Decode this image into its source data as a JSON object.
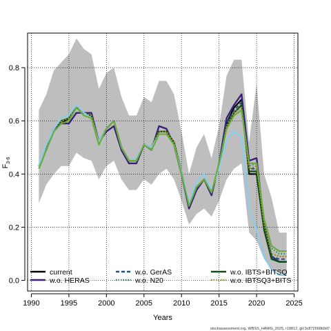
{
  "chart_data": {
    "type": "line",
    "xlabel": "Years",
    "ylabel": "F",
    "ylabel_sub": "3-6",
    "xlim": [
      1989.5,
      2025.5
    ],
    "ylim": [
      -0.04,
      0.93
    ],
    "xticks": [
      1990,
      1995,
      2000,
      2005,
      2010,
      2015,
      2020,
      2025
    ],
    "yticks": [
      0.0,
      0.2,
      0.4,
      0.6,
      0.8
    ],
    "xtick_labels": [
      "1990",
      "1995",
      "2000",
      "2005",
      "2010",
      "2015",
      "2020",
      "2025"
    ],
    "ytick_labels": [
      "0.0",
      "0.2",
      "0.4",
      "0.6",
      "0.8"
    ],
    "grid": true,
    "x": [
      1991,
      1992,
      1993,
      1994,
      1995,
      1996,
      1997,
      1998,
      1999,
      2000,
      2001,
      2002,
      2003,
      2004,
      2005,
      2006,
      2007,
      2008,
      2009,
      2010,
      2011,
      2012,
      2013,
      2014,
      2015,
      2016,
      2017,
      2018,
      2019,
      2020,
      2021,
      2022,
      2023,
      2024
    ],
    "band": {
      "upper": [
        0.64,
        0.7,
        0.79,
        0.82,
        0.85,
        0.91,
        0.87,
        0.85,
        0.72,
        0.78,
        0.8,
        0.69,
        0.62,
        0.62,
        0.69,
        0.67,
        0.75,
        0.75,
        0.7,
        0.56,
        0.4,
        0.5,
        0.55,
        0.46,
        0.58,
        0.77,
        0.83,
        0.83,
        0.52,
        0.74,
        0.4,
        0.31,
        0.18,
        0.18
      ],
      "lower": [
        0.29,
        0.36,
        0.4,
        0.43,
        0.43,
        0.48,
        0.46,
        0.45,
        0.38,
        0.43,
        0.45,
        0.38,
        0.34,
        0.34,
        0.38,
        0.36,
        0.4,
        0.42,
        0.38,
        0.3,
        0.21,
        0.25,
        0.27,
        0.24,
        0.3,
        0.38,
        0.42,
        0.44,
        0.18,
        0.15,
        0.08,
        0.04,
        0.03,
        0.02
      ],
      "color": "#bebebe"
    },
    "series": [
      {
        "name": "current",
        "color": "#000000",
        "dash": "",
        "width": 2.2,
        "values": [
          0.43,
          0.5,
          0.57,
          0.59,
          0.61,
          0.65,
          0.63,
          0.62,
          0.52,
          0.57,
          0.6,
          0.5,
          0.45,
          0.45,
          0.51,
          0.5,
          0.56,
          0.56,
          0.52,
          0.41,
          0.28,
          0.35,
          0.38,
          0.33,
          0.43,
          0.59,
          0.65,
          0.68,
          0.4,
          0.4,
          0.19,
          0.08,
          0.07,
          0.07
        ]
      },
      {
        "name": "w.o. HERAS",
        "color": "#3a1f7a",
        "dash": "",
        "width": 2.4,
        "values": [
          0.43,
          0.5,
          0.57,
          0.59,
          0.59,
          0.63,
          0.63,
          0.63,
          0.52,
          0.56,
          0.58,
          0.49,
          0.44,
          0.44,
          0.51,
          0.49,
          0.58,
          0.57,
          0.51,
          0.4,
          0.27,
          0.34,
          0.38,
          0.32,
          0.44,
          0.61,
          0.66,
          0.7,
          0.45,
          0.46,
          0.21,
          0.09,
          0.07,
          0.07
        ]
      },
      {
        "name": "w.o. GerAS",
        "color": "#1f4e7a",
        "dash": "5,3",
        "width": 2.0,
        "values": [
          0.43,
          0.5,
          0.57,
          0.6,
          0.61,
          0.65,
          0.63,
          0.62,
          0.52,
          0.57,
          0.6,
          0.5,
          0.45,
          0.45,
          0.51,
          0.5,
          0.56,
          0.56,
          0.52,
          0.41,
          0.28,
          0.35,
          0.38,
          0.33,
          0.43,
          0.59,
          0.64,
          0.67,
          0.42,
          0.42,
          0.2,
          0.09,
          0.08,
          0.08
        ]
      },
      {
        "name": "w.o. N20",
        "color": "#2e8b57",
        "dash": "1.5,2.5",
        "width": 2.2,
        "values": [
          0.43,
          0.5,
          0.57,
          0.6,
          0.61,
          0.65,
          0.63,
          0.62,
          0.52,
          0.57,
          0.6,
          0.5,
          0.45,
          0.46,
          0.51,
          0.5,
          0.56,
          0.56,
          0.52,
          0.41,
          0.28,
          0.35,
          0.38,
          0.33,
          0.43,
          0.58,
          0.63,
          0.66,
          0.43,
          0.44,
          0.22,
          0.12,
          0.1,
          0.1
        ]
      },
      {
        "name": "w.o. IBTS+BITSQ",
        "color": "#0d4d12",
        "dash": "",
        "width": 2.2,
        "values": [
          0.43,
          0.5,
          0.57,
          0.6,
          0.61,
          0.65,
          0.63,
          0.62,
          0.52,
          0.57,
          0.6,
          0.5,
          0.45,
          0.45,
          0.51,
          0.5,
          0.56,
          0.56,
          0.52,
          0.41,
          0.28,
          0.35,
          0.38,
          0.33,
          0.43,
          0.58,
          0.63,
          0.66,
          0.41,
          0.41,
          0.19,
          0.08,
          0.07,
          0.07
        ]
      },
      {
        "name": "w.o. IBTSQ3+BITS",
        "color": "#9a8a2a",
        "dash": "2,2",
        "width": 2.2,
        "values": [
          0.43,
          0.5,
          0.57,
          0.6,
          0.61,
          0.65,
          0.63,
          0.62,
          0.52,
          0.57,
          0.6,
          0.5,
          0.45,
          0.45,
          0.51,
          0.5,
          0.56,
          0.56,
          0.52,
          0.41,
          0.28,
          0.35,
          0.38,
          0.33,
          0.43,
          0.58,
          0.63,
          0.65,
          0.42,
          0.43,
          0.21,
          0.1,
          0.09,
          0.09
        ]
      },
      {
        "name": "",
        "color": "#87ceeb",
        "dash": "",
        "width": 2.2,
        "values": [
          0.43,
          0.51,
          0.57,
          0.61,
          0.62,
          0.66,
          0.63,
          0.61,
          0.52,
          0.57,
          0.6,
          0.5,
          0.45,
          0.46,
          0.51,
          0.5,
          0.55,
          0.55,
          0.51,
          0.41,
          0.29,
          0.37,
          0.4,
          0.34,
          0.42,
          0.53,
          0.56,
          0.54,
          0.27,
          0.19,
          0.09,
          0.04,
          0.02,
          0.02
        ]
      },
      {
        "name": "",
        "color": "#6aab3c",
        "dash": "",
        "width": 2.2,
        "values": [
          0.42,
          0.49,
          0.56,
          0.59,
          0.6,
          0.65,
          0.62,
          0.61,
          0.51,
          0.57,
          0.6,
          0.5,
          0.45,
          0.45,
          0.51,
          0.49,
          0.55,
          0.55,
          0.51,
          0.4,
          0.28,
          0.35,
          0.38,
          0.33,
          0.44,
          0.57,
          0.62,
          0.64,
          0.44,
          0.44,
          0.23,
          0.13,
          0.11,
          0.11
        ]
      }
    ],
    "legend": {
      "placement": "bottom",
      "entries": [
        {
          "label": "current",
          "color": "#000000",
          "style": "solid"
        },
        {
          "label": "w.o. HERAS",
          "color": "#3a1f7a",
          "style": "solid"
        },
        {
          "label": "w.o. GerAS",
          "color": "#1f4e7a",
          "style": "dashed"
        },
        {
          "label": "w.o. N20",
          "color": "#2e8b57",
          "style": "dotted"
        },
        {
          "label": "w.o. IBTS+BITSQ",
          "color": "#0d4d12",
          "style": "solid"
        },
        {
          "label": "w.o. IBTSQ3+BITS",
          "color": "#9a8a2a",
          "style": "dotted"
        }
      ]
    },
    "footer": "stockassessment.org, WBSS_HAWG_2025, r18812, git:3c872568b9d7"
  }
}
